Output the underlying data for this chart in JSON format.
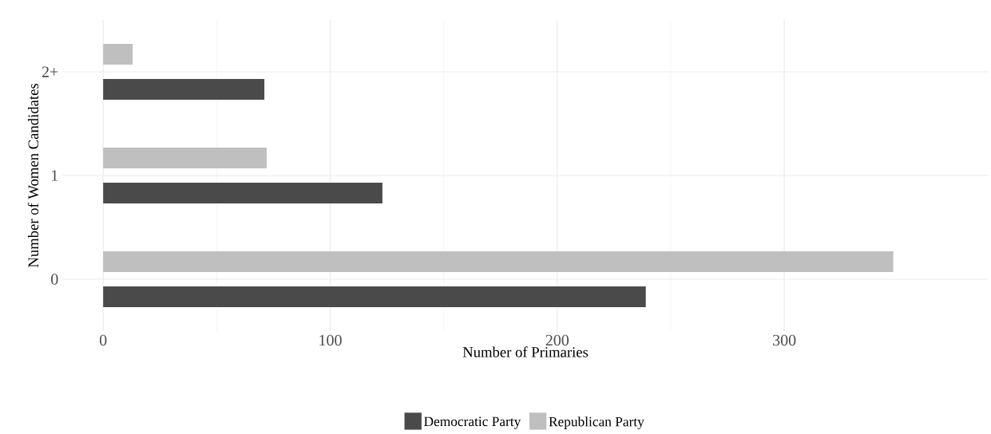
{
  "chart_data": {
    "type": "bar",
    "orientation": "horizontal",
    "xlabel": "Number of Primaries",
    "ylabel": "Number of Women Candidates",
    "categories": [
      "2+",
      "1",
      "0"
    ],
    "series": [
      {
        "name": "Democratic Party",
        "color": "#4a4a4a",
        "values": [
          71,
          123,
          239
        ]
      },
      {
        "name": "Republican Party",
        "color": "#bfbfbf",
        "values": [
          13,
          72,
          348
        ]
      }
    ],
    "xlim": [
      -18,
      390
    ],
    "xticks": [
      0,
      100,
      200,
      300
    ],
    "grid": true,
    "legend": "bottom"
  }
}
